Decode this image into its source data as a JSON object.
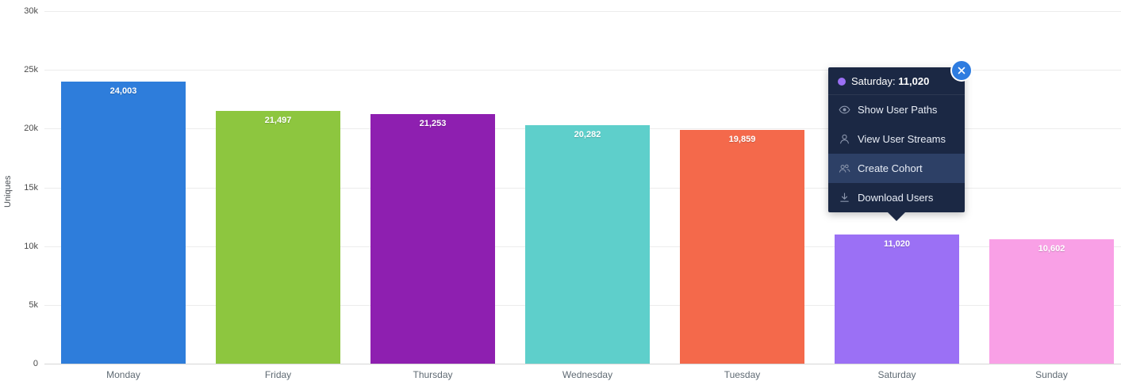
{
  "chart_data": {
    "type": "bar",
    "title": "",
    "xlabel": "",
    "ylabel": "Uniques",
    "ylim": [
      0,
      30000
    ],
    "grid": true,
    "legend_position": "none",
    "y_ticks": [
      {
        "label": "0",
        "value": 0
      },
      {
        "label": "5k",
        "value": 5000
      },
      {
        "label": "10k",
        "value": 10000
      },
      {
        "label": "15k",
        "value": 15000
      },
      {
        "label": "20k",
        "value": 20000
      },
      {
        "label": "25k",
        "value": 25000
      },
      {
        "label": "30k",
        "value": 30000
      }
    ],
    "categories": [
      "Monday",
      "Friday",
      "Thursday",
      "Wednesday",
      "Tuesday",
      "Saturday",
      "Sunday"
    ],
    "values": [
      24003,
      21497,
      21253,
      20282,
      19859,
      11020,
      10602
    ],
    "value_labels": [
      "24,003",
      "21,497",
      "21,253",
      "20,282",
      "19,859",
      "11,020",
      "10,602"
    ],
    "bar_colors": [
      "#2e7ddb",
      "#8dc63f",
      "#8e1fb0",
      "#5ecfcb",
      "#f4694b",
      "#9b70f5",
      "#f9a0e6"
    ]
  },
  "tooltip": {
    "series": "Saturday",
    "title_label": "Saturday:",
    "title_value": "11,020",
    "dot_color": "#9b70f5",
    "menu_items": [
      {
        "label": "Show User Paths",
        "icon": "eye-icon",
        "highlighted": false
      },
      {
        "label": "View User Streams",
        "icon": "user-icon",
        "highlighted": false
      },
      {
        "label": "Create Cohort",
        "icon": "users-icon",
        "highlighted": true
      },
      {
        "label": "Download Users",
        "icon": "download-icon",
        "highlighted": false
      }
    ]
  }
}
